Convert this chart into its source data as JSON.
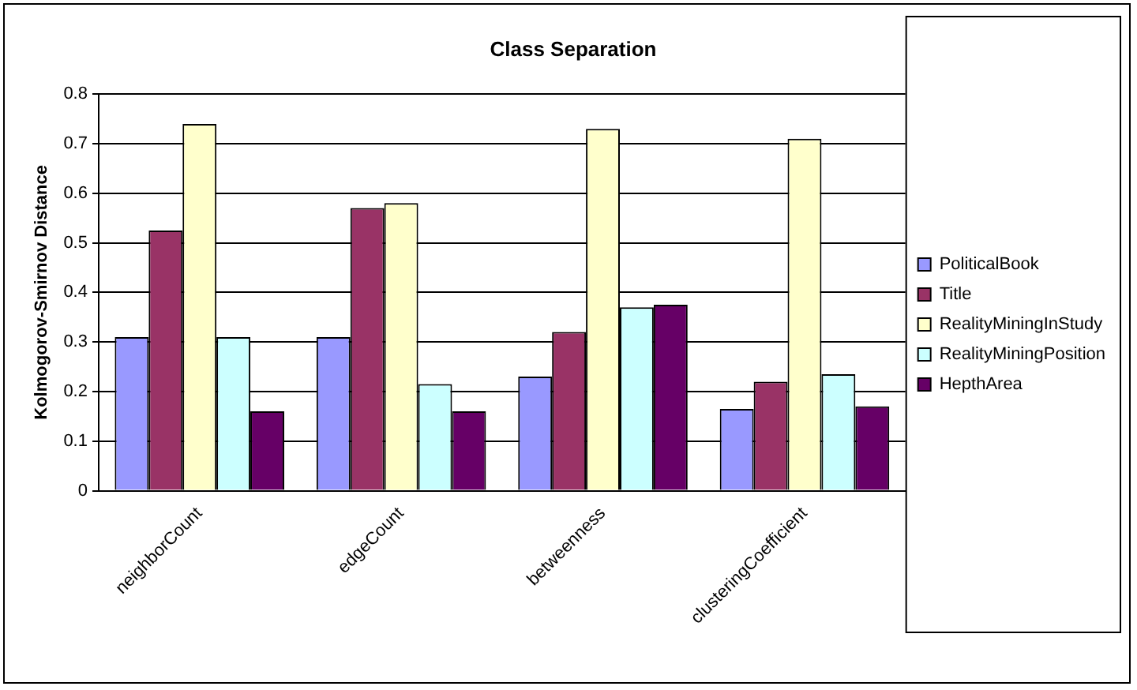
{
  "chart_data": {
    "type": "bar",
    "title": "Class Separation",
    "ylabel": "Kolmogorov-Smirnov Distance",
    "categories": [
      "neighborCount",
      "edgeCount",
      "betweenness",
      "clusteringCoefficient"
    ],
    "series": [
      {
        "name": "PoliticalBook",
        "color": "#9999ff",
        "values": [
          0.31,
          0.31,
          0.23,
          0.165
        ]
      },
      {
        "name": "Title",
        "color": "#993366",
        "values": [
          0.525,
          0.57,
          0.32,
          0.22
        ]
      },
      {
        "name": "RealityMiningInStudy",
        "color": "#ffffcc",
        "values": [
          0.74,
          0.58,
          0.73,
          0.71
        ]
      },
      {
        "name": "RealityMiningPosition",
        "color": "#ccffff",
        "values": [
          0.31,
          0.215,
          0.37,
          0.235
        ]
      },
      {
        "name": "HepthArea",
        "color": "#660066",
        "values": [
          0.16,
          0.16,
          0.375,
          0.17
        ]
      }
    ],
    "ylim": [
      0,
      0.8
    ],
    "yticks": [
      0,
      0.1,
      0.2,
      0.3,
      0.4,
      0.5,
      0.6,
      0.7,
      0.8
    ],
    "grid": "y",
    "legend": "right"
  }
}
